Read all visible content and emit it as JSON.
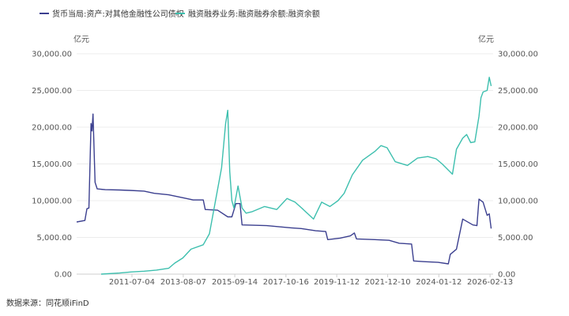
{
  "chart_data": {
    "type": "line",
    "title": "",
    "x_tick_labels": [
      "2011-07-04",
      "2013-08-07",
      "2015-09-14",
      "2017-10-16",
      "2019-11-12",
      "2021-12-10",
      "2024-01-12",
      "2026-02-13"
    ],
    "x_tick_dates": [
      "2011-07-04",
      "2013-08-07",
      "2015-09-14",
      "2017-10-16",
      "2019-11-12",
      "2021-12-10",
      "2024-01-12",
      "2026-02-13"
    ],
    "x_range": [
      "2009-04-01",
      "2026-03-31"
    ],
    "y_left": {
      "unit": "亿元",
      "ylim": [
        0,
        30000
      ],
      "ticks": [
        "0.00",
        "5,000.00",
        "10,000.00",
        "15,000.00",
        "20,000.00",
        "25,000.00",
        "30,000.00"
      ]
    },
    "y_right": {
      "unit": "亿元",
      "ylim": [
        0,
        30000
      ],
      "ticks": [
        "0.00",
        "5,000.00",
        "10,000.00",
        "15,000.00",
        "20,000.00",
        "25,000.00",
        "30,000.00"
      ]
    },
    "grid": true,
    "legend_position": "top-left",
    "source": "数据来源：同花顺iFinD",
    "series": [
      {
        "name": "货币当局:资产:对其他金融性公司债权",
        "axis": "left",
        "color": "#3b3f8f",
        "points": [
          [
            "2009-04-01",
            7100
          ],
          [
            "2009-08-01",
            7300
          ],
          [
            "2009-09-01",
            8900
          ],
          [
            "2009-10-01",
            9000
          ],
          [
            "2009-11-01",
            20500
          ],
          [
            "2009-11-15",
            19500
          ],
          [
            "2009-12-01",
            21800
          ],
          [
            "2010-01-01",
            12500
          ],
          [
            "2010-02-01",
            11600
          ],
          [
            "2010-06-01",
            11500
          ],
          [
            "2011-01-01",
            11450
          ],
          [
            "2011-06-01",
            11400
          ],
          [
            "2012-01-01",
            11300
          ],
          [
            "2012-06-01",
            11000
          ],
          [
            "2013-01-01",
            10800
          ],
          [
            "2013-08-01",
            10400
          ],
          [
            "2014-01-01",
            10100
          ],
          [
            "2014-06-01",
            10100
          ],
          [
            "2014-07-01",
            8800
          ],
          [
            "2015-01-01",
            8700
          ],
          [
            "2015-06-01",
            7800
          ],
          [
            "2015-08-01",
            7800
          ],
          [
            "2015-10-01",
            9600
          ],
          [
            "2015-12-01",
            9600
          ],
          [
            "2016-01-01",
            6700
          ],
          [
            "2017-01-01",
            6600
          ],
          [
            "2018-01-01",
            6300
          ],
          [
            "2018-06-01",
            6200
          ],
          [
            "2019-01-01",
            5900
          ],
          [
            "2019-06-01",
            5800
          ],
          [
            "2019-07-01",
            4700
          ],
          [
            "2020-01-01",
            4900
          ],
          [
            "2020-06-01",
            5200
          ],
          [
            "2020-08-01",
            5600
          ],
          [
            "2020-09-01",
            4800
          ],
          [
            "2021-06-01",
            4700
          ],
          [
            "2022-01-01",
            4600
          ],
          [
            "2022-06-01",
            4200
          ],
          [
            "2022-12-01",
            4100
          ],
          [
            "2023-01-01",
            1800
          ],
          [
            "2023-06-01",
            1700
          ],
          [
            "2024-01-01",
            1600
          ],
          [
            "2024-06-01",
            1400
          ],
          [
            "2024-07-01",
            2700
          ],
          [
            "2024-10-01",
            3400
          ],
          [
            "2025-01-01",
            7500
          ],
          [
            "2025-06-01",
            6700
          ],
          [
            "2025-08-01",
            6600
          ],
          [
            "2025-09-01",
            10200
          ],
          [
            "2025-11-01",
            9800
          ],
          [
            "2026-01-01",
            8000
          ],
          [
            "2026-02-01",
            8200
          ],
          [
            "2026-03-01",
            6200
          ]
        ]
      },
      {
        "name": "融资融券业务:融资融券余额:融资余额",
        "axis": "right",
        "color": "#3dbfae",
        "points": [
          [
            "2010-04-01",
            0
          ],
          [
            "2011-01-01",
            150
          ],
          [
            "2011-07-01",
            300
          ],
          [
            "2012-01-01",
            400
          ],
          [
            "2012-07-01",
            550
          ],
          [
            "2013-01-01",
            800
          ],
          [
            "2013-04-01",
            1500
          ],
          [
            "2013-08-01",
            2200
          ],
          [
            "2013-12-01",
            3400
          ],
          [
            "2014-06-01",
            4000
          ],
          [
            "2014-09-01",
            5500
          ],
          [
            "2014-12-01",
            10000
          ],
          [
            "2015-03-01",
            14500
          ],
          [
            "2015-05-01",
            20500
          ],
          [
            "2015-06-01",
            22300
          ],
          [
            "2015-07-01",
            14000
          ],
          [
            "2015-08-01",
            10000
          ],
          [
            "2015-09-01",
            9000
          ],
          [
            "2015-11-01",
            12000
          ],
          [
            "2016-01-01",
            9000
          ],
          [
            "2016-03-01",
            8300
          ],
          [
            "2016-06-01",
            8500
          ],
          [
            "2016-12-01",
            9200
          ],
          [
            "2017-06-01",
            8800
          ],
          [
            "2017-11-01",
            10300
          ],
          [
            "2018-03-01",
            9800
          ],
          [
            "2018-07-01",
            8800
          ],
          [
            "2018-12-01",
            7500
          ],
          [
            "2019-04-01",
            9800
          ],
          [
            "2019-08-01",
            9200
          ],
          [
            "2019-12-01",
            10000
          ],
          [
            "2020-03-01",
            11000
          ],
          [
            "2020-07-01",
            13500
          ],
          [
            "2020-12-01",
            15500
          ],
          [
            "2021-06-01",
            16700
          ],
          [
            "2021-09-01",
            17500
          ],
          [
            "2021-12-01",
            17200
          ],
          [
            "2022-04-01",
            15300
          ],
          [
            "2022-10-01",
            14800
          ],
          [
            "2023-03-01",
            15800
          ],
          [
            "2023-08-01",
            16000
          ],
          [
            "2023-12-01",
            15700
          ],
          [
            "2024-03-01",
            15000
          ],
          [
            "2024-08-01",
            13600
          ],
          [
            "2024-10-01",
            17000
          ],
          [
            "2025-01-01",
            18500
          ],
          [
            "2025-03-01",
            19000
          ],
          [
            "2025-05-01",
            17900
          ],
          [
            "2025-07-01",
            18000
          ],
          [
            "2025-09-01",
            21500
          ],
          [
            "2025-10-01",
            24000
          ],
          [
            "2025-11-01",
            24800
          ],
          [
            "2026-01-01",
            25000
          ],
          [
            "2026-02-01",
            26800
          ],
          [
            "2026-03-01",
            25600
          ]
        ]
      }
    ]
  }
}
